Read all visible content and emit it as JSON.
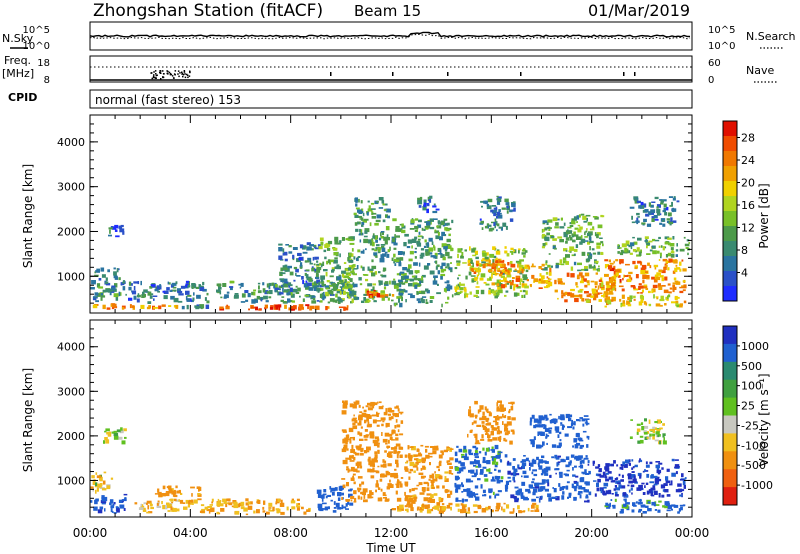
{
  "header": {
    "title": "Zhongshan Station (fitACF)",
    "beam": "Beam 15",
    "date": "01/Mar/2019"
  },
  "top_panels": {
    "nsky_label": "N.Sky",
    "nsky_ticks": [
      "10^5",
      "10^0"
    ],
    "nsearch_label": "N.Search",
    "nsearch_ticks": [
      "10^5",
      "10^0"
    ],
    "freq_label": "Freq.",
    "freq_unit": "[MHz]",
    "freq_ticks": [
      "18",
      "8"
    ],
    "nave_label": "Nave",
    "nave_ticks": [
      "60",
      "0"
    ],
    "cpid_label": "CPID",
    "cpid_text": "normal (fast stereo) 153"
  },
  "colors": {
    "power": [
      "#1e2cff",
      "#2a50c8",
      "#2a74a0",
      "#3a8a70",
      "#4c9a4a",
      "#78c028",
      "#b0d420",
      "#f0d000",
      "#f0a000",
      "#f07800",
      "#f04c00",
      "#e01000"
    ],
    "velocity": [
      "#2030c0",
      "#2060d0",
      "#2a8a70",
      "#40a040",
      "#60c020",
      "#c8c8c0",
      "#f0c020",
      "#f09010",
      "#f06010",
      "#e02010"
    ]
  },
  "chart_data": [
    {
      "type": "heatmap",
      "title": "",
      "xlabel": "",
      "ylabel": "Slant Range [km]",
      "x_ticks": [
        "00:00",
        "04:00",
        "08:00",
        "12:00",
        "16:00",
        "20:00",
        "00:00"
      ],
      "y_ticks": [
        "1000",
        "2000",
        "3000",
        "4000"
      ],
      "xlim_hours": [
        0,
        24
      ],
      "ylim_km": [
        180,
        4600
      ],
      "colorbar": {
        "label": "Power [dB]",
        "ticks": [
          "28",
          "24",
          "20",
          "16",
          "12",
          "8",
          "4"
        ],
        "range": [
          0,
          30
        ]
      },
      "patches": [
        {
          "h": [
            0.0,
            1.2
          ],
          "r": [
            250,
            420
          ],
          "v": 24
        },
        {
          "h": [
            0.0,
            1.5
          ],
          "r": [
            420,
            1200
          ],
          "v": 8
        },
        {
          "h": [
            0.7,
            1.5
          ],
          "r": [
            1850,
            2150
          ],
          "v": 6
        },
        {
          "h": [
            1.2,
            3.6
          ],
          "r": [
            250,
            380
          ],
          "v": 22
        },
        {
          "h": [
            1.5,
            4.8
          ],
          "r": [
            380,
            900
          ],
          "v": 7
        },
        {
          "h": [
            3.6,
            5.0
          ],
          "r": [
            250,
            380
          ],
          "v": 8
        },
        {
          "h": [
            5.0,
            10.5
          ],
          "r": [
            220,
            380
          ],
          "v": 27
        },
        {
          "h": [
            5.0,
            10.5
          ],
          "r": [
            380,
            900
          ],
          "v": 9
        },
        {
          "h": [
            7.5,
            9.2
          ],
          "r": [
            600,
            1800
          ],
          "v": 7
        },
        {
          "h": [
            9.0,
            10.6
          ],
          "r": [
            400,
            1900
          ],
          "v": 12
        },
        {
          "h": [
            10.0,
            12.0
          ],
          "r": [
            400,
            1300
          ],
          "v": 12
        },
        {
          "h": [
            10.5,
            12.0
          ],
          "r": [
            1300,
            2800
          ],
          "v": 10
        },
        {
          "h": [
            11.0,
            12.3
          ],
          "r": [
            500,
            700
          ],
          "v": 25
        },
        {
          "h": [
            12.0,
            14.5
          ],
          "r": [
            300,
            2300
          ],
          "v": 10
        },
        {
          "h": [
            13.0,
            14.0
          ],
          "r": [
            2400,
            2800
          ],
          "v": 6
        },
        {
          "h": [
            14.5,
            17.5
          ],
          "r": [
            500,
            1700
          ],
          "v": 14
        },
        {
          "h": [
            15.0,
            17.0
          ],
          "r": [
            1000,
            1400
          ],
          "v": 23
        },
        {
          "h": [
            16.0,
            18.5
          ],
          "r": [
            700,
            1300
          ],
          "v": 22
        },
        {
          "h": [
            15.5,
            17.0
          ],
          "r": [
            2000,
            2800
          ],
          "v": 7
        },
        {
          "h": [
            18.5,
            21.0
          ],
          "r": [
            400,
            1100
          ],
          "v": 22
        },
        {
          "h": [
            18.0,
            20.5
          ],
          "r": [
            1100,
            2400
          ],
          "v": 12
        },
        {
          "h": [
            20.5,
            23.8
          ],
          "r": [
            300,
            600
          ],
          "v": 18
        },
        {
          "h": [
            20.5,
            23.8
          ],
          "r": [
            600,
            1400
          ],
          "v": 23
        },
        {
          "h": [
            21.5,
            23.5
          ],
          "r": [
            2100,
            2800
          ],
          "v": 7
        },
        {
          "h": [
            21.0,
            24.0
          ],
          "r": [
            1400,
            1900
          ],
          "v": 12
        }
      ]
    },
    {
      "type": "heatmap",
      "title": "",
      "xlabel": "Time UT",
      "ylabel": "Slant Range [km]",
      "x_ticks": [
        "00:00",
        "04:00",
        "08:00",
        "12:00",
        "16:00",
        "20:00",
        "00:00"
      ],
      "y_ticks": [
        "1000",
        "2000",
        "3000",
        "4000"
      ],
      "xlim_hours": [
        0,
        24
      ],
      "ylim_km": [
        180,
        4600
      ],
      "colorbar": {
        "label": "Velocity [m s⁻¹]",
        "ticks": [
          "1000",
          "500",
          "100",
          "25",
          "-25",
          "-100",
          "-500",
          "-1000"
        ],
        "range": [
          -1000,
          1000
        ]
      },
      "patches": [
        {
          "h": [
            0.0,
            1.5
          ],
          "r": [
            250,
            700
          ],
          "v": 400
        },
        {
          "h": [
            0.0,
            1.0
          ],
          "r": [
            700,
            1200
          ],
          "v": -60
        },
        {
          "h": [
            0.5,
            1.5
          ],
          "r": [
            1800,
            2200
          ],
          "v": 0
        },
        {
          "h": [
            1.5,
            5.0
          ],
          "r": [
            250,
            600
          ],
          "v": -80
        },
        {
          "h": [
            2.5,
            4.5
          ],
          "r": [
            600,
            900
          ],
          "v": -150
        },
        {
          "h": [
            5.0,
            9.0
          ],
          "r": [
            220,
            600
          ],
          "v": -120
        },
        {
          "h": [
            9.0,
            10.5
          ],
          "r": [
            250,
            900
          ],
          "v": 350
        },
        {
          "h": [
            10.0,
            12.5
          ],
          "r": [
            500,
            2800
          ],
          "v": -300
        },
        {
          "h": [
            12.5,
            14.5
          ],
          "r": [
            300,
            1800
          ],
          "v": -150
        },
        {
          "h": [
            14.5,
            16.5
          ],
          "r": [
            500,
            1800
          ],
          "v": 150
        },
        {
          "h": [
            15.0,
            17.0
          ],
          "r": [
            1800,
            2800
          ],
          "v": -200
        },
        {
          "h": [
            16.5,
            20.0
          ],
          "r": [
            500,
            1600
          ],
          "v": 400
        },
        {
          "h": [
            17.5,
            20.0
          ],
          "r": [
            1700,
            2500
          ],
          "v": 200
        },
        {
          "h": [
            20.0,
            23.8
          ],
          "r": [
            600,
            1500
          ],
          "v": 600
        },
        {
          "h": [
            20.5,
            23.8
          ],
          "r": [
            250,
            600
          ],
          "v": 150
        },
        {
          "h": [
            21.5,
            23.0
          ],
          "r": [
            1800,
            2400
          ],
          "v": 0
        },
        {
          "h": [
            12.0,
            18.0
          ],
          "r": [
            250,
            500
          ],
          "v": -120
        }
      ]
    }
  ]
}
